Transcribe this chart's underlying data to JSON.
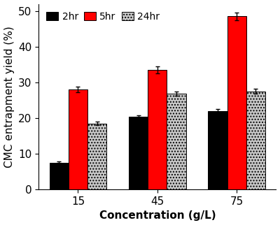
{
  "categories": [
    "15",
    "45",
    "75"
  ],
  "xlabel": "Concentration (g/L)",
  "ylabel": "CMC entrapment yield (%)",
  "ylim": [
    0,
    52
  ],
  "yticks": [
    0,
    10,
    20,
    30,
    40,
    50
  ],
  "series": {
    "2hr": {
      "values": [
        7.5,
        20.3,
        22.0
      ],
      "errors": [
        0.4,
        0.5,
        0.5
      ],
      "color": "#000000",
      "hatch": ""
    },
    "5hr": {
      "values": [
        28.0,
        33.5,
        48.5
      ],
      "errors": [
        0.8,
        1.0,
        1.0
      ],
      "color": "#ff0000",
      "hatch": ""
    },
    "24hr": {
      "values": [
        18.5,
        26.8,
        27.5
      ],
      "errors": [
        0.5,
        0.6,
        0.7
      ],
      "color": "#c8c8c8",
      "hatch": "...."
    }
  },
  "legend_labels": [
    "2hr",
    "5hr",
    "24hr"
  ],
  "bar_width": 0.24,
  "background_color": "#ffffff",
  "axis_fontsize": 11,
  "tick_fontsize": 11,
  "legend_fontsize": 10,
  "figsize": [
    4.0,
    3.22
  ],
  "dpi": 100
}
